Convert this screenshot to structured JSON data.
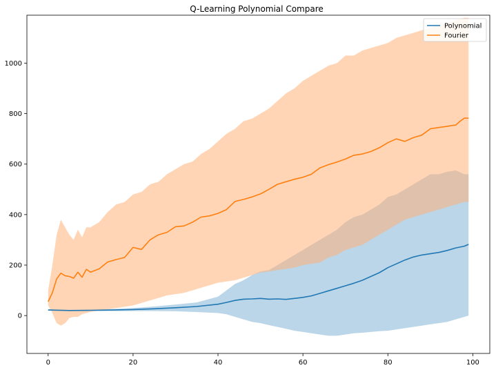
{
  "chart_data": {
    "type": "line",
    "title": "Q-Learning Polynomial Compare",
    "xlabel": "",
    "ylabel": "",
    "xlim": [
      -5,
      104
    ],
    "ylim": [
      -150,
      1190
    ],
    "xticks": [
      0,
      20,
      40,
      60,
      80,
      100
    ],
    "yticks": [
      0,
      200,
      400,
      600,
      800,
      1000
    ],
    "xtick_labels": [
      "0",
      "20",
      "40",
      "60",
      "80",
      "100"
    ],
    "ytick_labels": [
      "0",
      "200",
      "400",
      "600",
      "800",
      "1000"
    ],
    "grid": false,
    "legend_position": "top-right",
    "series": [
      {
        "name": "Polynomial",
        "color": "#1f77b4",
        "band_color": "#1f77b4",
        "x": [
          0,
          5,
          10,
          15,
          20,
          25,
          30,
          35,
          40,
          42,
          44,
          46,
          48,
          50,
          52,
          54,
          56,
          58,
          60,
          62,
          64,
          66,
          68,
          70,
          72,
          74,
          76,
          78,
          80,
          82,
          84,
          86,
          88,
          90,
          92,
          94,
          96,
          98,
          99
        ],
        "mean": [
          22,
          20,
          21,
          22,
          24,
          27,
          31,
          36,
          45,
          52,
          60,
          65,
          66,
          68,
          65,
          66,
          64,
          68,
          72,
          78,
          88,
          98,
          108,
          118,
          128,
          140,
          155,
          170,
          190,
          205,
          220,
          232,
          240,
          245,
          250,
          258,
          268,
          275,
          282
        ],
        "upper": [
          25,
          22,
          23,
          26,
          30,
          36,
          44,
          52,
          75,
          100,
          125,
          140,
          160,
          175,
          180,
          200,
          220,
          240,
          260,
          280,
          300,
          320,
          340,
          370,
          390,
          400,
          420,
          440,
          470,
          480,
          500,
          520,
          540,
          560,
          560,
          570,
          575,
          560,
          560
        ],
        "lower": [
          20,
          18,
          18,
          18,
          18,
          18,
          17,
          14,
          10,
          5,
          -5,
          -15,
          -25,
          -30,
          -38,
          -45,
          -52,
          -60,
          -65,
          -70,
          -75,
          -80,
          -80,
          -75,
          -70,
          -68,
          -65,
          -62,
          -60,
          -55,
          -50,
          -45,
          -40,
          -35,
          -30,
          -25,
          -15,
          -5,
          0
        ]
      },
      {
        "name": "Fourier",
        "color": "#ff7f0e",
        "band_color": "#ffb27a",
        "x": [
          0,
          1,
          2,
          3,
          4,
          5,
          6,
          7,
          8,
          9,
          10,
          12,
          14,
          16,
          18,
          20,
          22,
          24,
          26,
          28,
          30,
          32,
          34,
          36,
          38,
          40,
          42,
          44,
          46,
          48,
          50,
          52,
          54,
          56,
          58,
          60,
          62,
          64,
          66,
          68,
          70,
          72,
          74,
          76,
          78,
          80,
          82,
          84,
          86,
          88,
          90,
          92,
          94,
          96,
          97,
          98,
          99
        ],
        "mean": [
          55,
          90,
          145,
          168,
          158,
          155,
          148,
          172,
          152,
          183,
          172,
          185,
          212,
          222,
          230,
          270,
          262,
          300,
          320,
          330,
          352,
          355,
          370,
          390,
          395,
          405,
          420,
          452,
          460,
          470,
          482,
          500,
          520,
          530,
          540,
          548,
          560,
          585,
          598,
          608,
          620,
          635,
          640,
          650,
          665,
          685,
          700,
          690,
          705,
          715,
          740,
          745,
          750,
          755,
          770,
          782,
          782
        ],
        "upper": [
          100,
          200,
          320,
          380,
          350,
          320,
          300,
          340,
          310,
          350,
          350,
          370,
          410,
          440,
          450,
          480,
          490,
          520,
          530,
          560,
          580,
          600,
          610,
          640,
          660,
          690,
          720,
          740,
          770,
          780,
          800,
          820,
          850,
          880,
          900,
          930,
          950,
          970,
          990,
          1000,
          1030,
          1030,
          1050,
          1060,
          1070,
          1080,
          1100,
          1110,
          1120,
          1130,
          1140,
          1150,
          1160,
          1170,
          1175,
          1180,
          1180
        ],
        "lower": [
          40,
          10,
          -30,
          -40,
          -30,
          -10,
          -5,
          -5,
          5,
          10,
          15,
          20,
          25,
          30,
          35,
          40,
          50,
          60,
          70,
          80,
          85,
          90,
          100,
          110,
          120,
          130,
          135,
          140,
          150,
          160,
          170,
          175,
          180,
          185,
          190,
          200,
          205,
          210,
          230,
          240,
          260,
          270,
          280,
          300,
          320,
          340,
          360,
          380,
          390,
          400,
          410,
          420,
          430,
          440,
          445,
          450,
          450
        ]
      }
    ]
  }
}
